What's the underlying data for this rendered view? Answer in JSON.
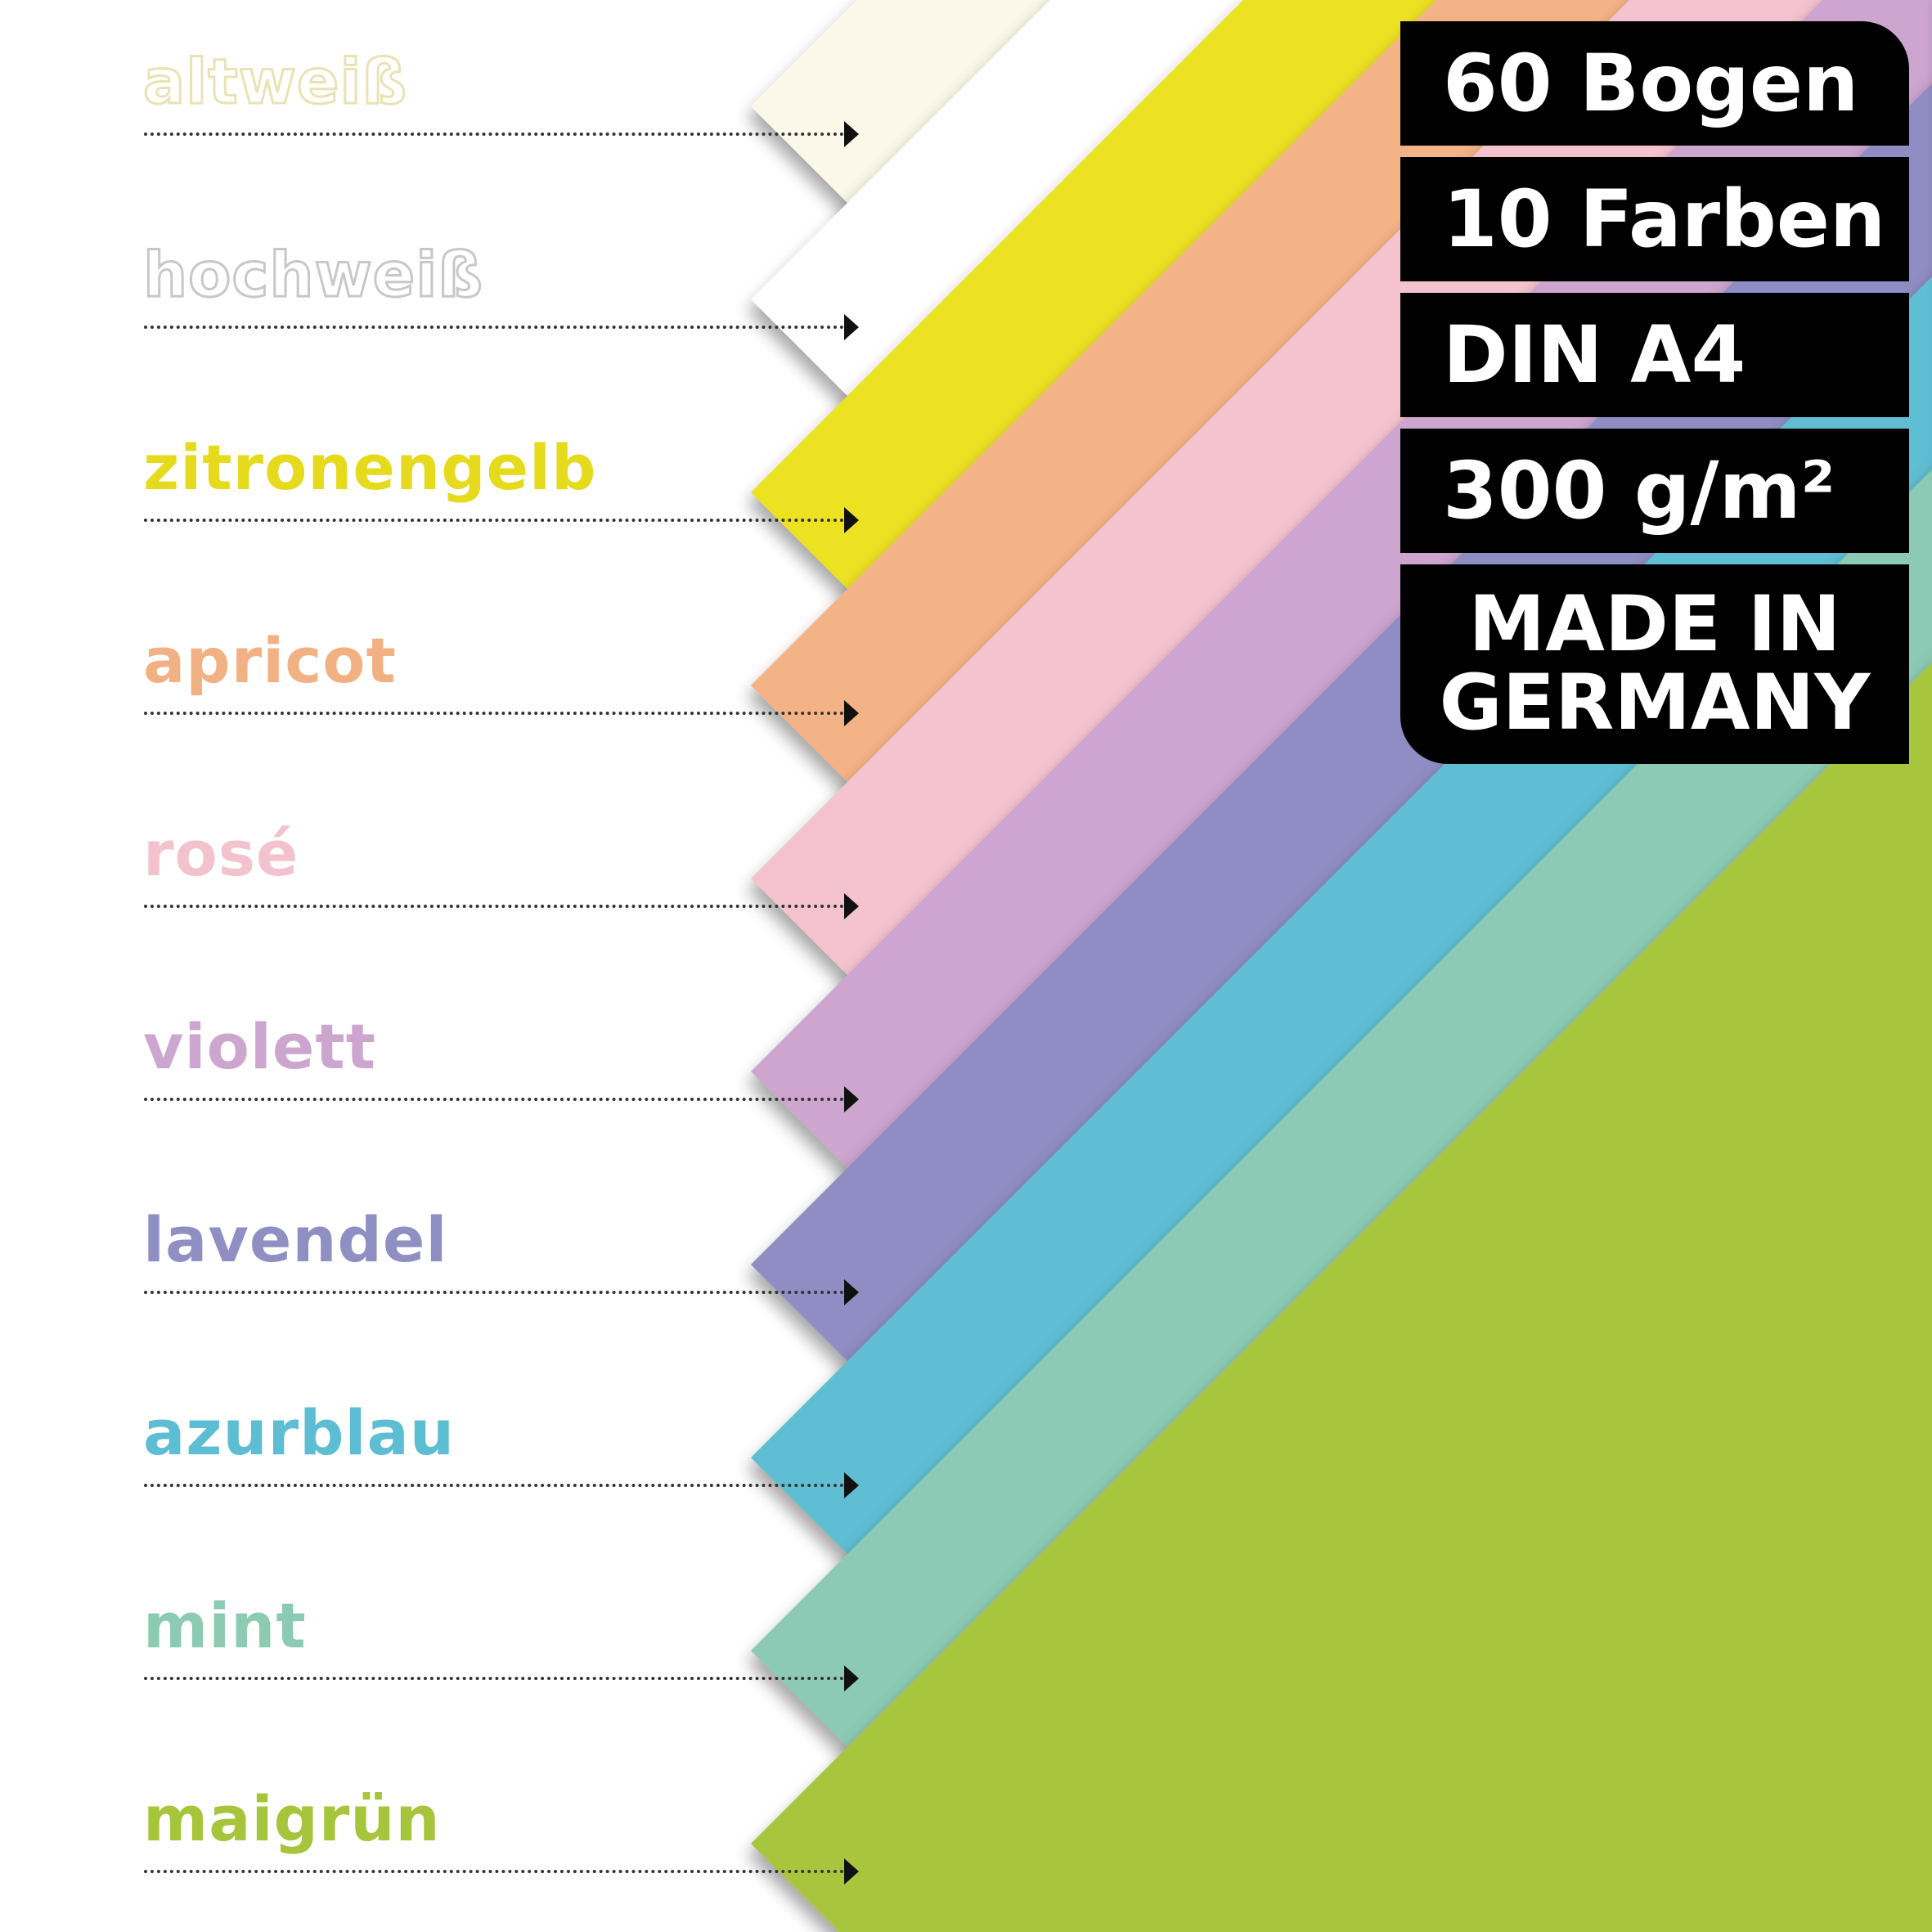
{
  "colors": [
    {
      "name": "altweiß",
      "hex": "#fbf8ea",
      "label_color": "#e9e3b4",
      "outline": true
    },
    {
      "name": "hochweiß",
      "hex": "#ffffff",
      "label_color": "#c8c8c8",
      "outline": true
    },
    {
      "name": "zitronengelb",
      "hex": "#ede221",
      "label_color": "#e6da1c",
      "outline": false
    },
    {
      "name": "apricot",
      "hex": "#f4b386",
      "label_color": "#f2b183",
      "outline": false
    },
    {
      "name": "rosé",
      "hex": "#f5c3d0",
      "label_color": "#f3c2cf",
      "outline": false
    },
    {
      "name": "violett",
      "hex": "#cda5cf",
      "label_color": "#cda6cf",
      "outline": false
    },
    {
      "name": "lavendel",
      "hex": "#8f8dc3",
      "label_color": "#908fc3",
      "outline": false
    },
    {
      "name": "azurblau",
      "hex": "#5fbed4",
      "label_color": "#5dbdd3",
      "outline": false
    },
    {
      "name": "mint",
      "hex": "#8ccab5",
      "label_color": "#8ccab4",
      "outline": false
    },
    {
      "name": "maigrün",
      "hex": "#a8c63c",
      "label_color": "#a7c53b",
      "outline": false
    }
  ],
  "badge": {
    "sheets": "60 Bogen",
    "colors_count": "10 Farben",
    "format": "DIN A4",
    "weight": "300 g/m²",
    "origin_line1": "MADE IN",
    "origin_line2": "GERMANY"
  }
}
